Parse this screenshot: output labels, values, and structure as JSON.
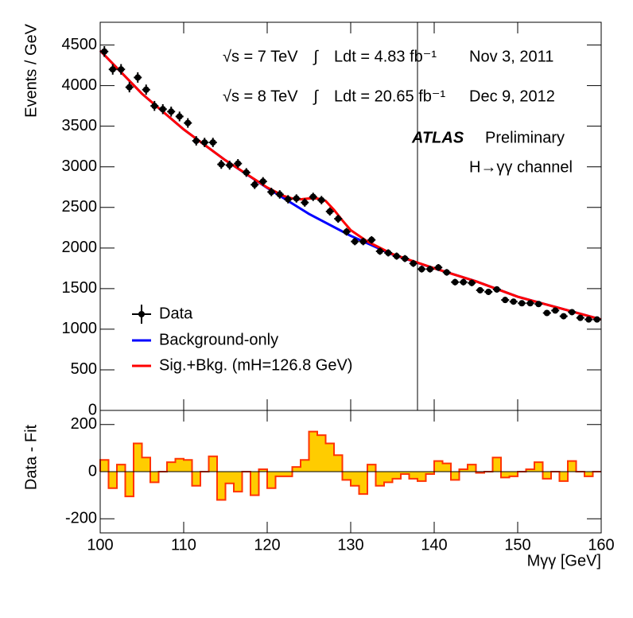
{
  "chart_data": [
    {
      "type": "errorbar",
      "ylabel": "Events / GeV",
      "xlim": [
        100,
        160
      ],
      "xticks": [
        100,
        110,
        120,
        130,
        140,
        150,
        160
      ],
      "ylim": [
        0,
        4780
      ],
      "yticks": [
        0,
        500,
        1000,
        1500,
        2000,
        2500,
        3000,
        3500,
        4000,
        4500
      ],
      "annotations": [
        "√s = 7 TeV",
        "Ldt = 4.83 fb⁻¹",
        "Nov  3, 2011",
        "√s = 8 TeV",
        "Ldt = 20.65 fb⁻¹",
        "Dec  9, 2012",
        "ATLAS",
        "Preliminary",
        "H→γγ channel"
      ],
      "vline": 138,
      "data": {
        "name": "Data",
        "color": "#000000",
        "x": [
          100.5,
          101.5,
          102.5,
          103.5,
          104.5,
          105.5,
          106.5,
          107.5,
          108.5,
          109.5,
          110.5,
          111.5,
          112.5,
          113.5,
          114.5,
          115.5,
          116.5,
          117.5,
          118.5,
          119.5,
          120.5,
          121.5,
          122.5,
          123.5,
          124.5,
          125.5,
          126.5,
          127.5,
          128.5,
          129.5,
          130.5,
          131.5,
          132.5,
          133.5,
          134.5,
          135.5,
          136.5,
          137.5,
          138.5,
          139.5,
          140.5,
          141.5,
          142.5,
          143.5,
          144.5,
          145.5,
          146.5,
          147.5,
          148.5,
          149.5,
          150.5,
          151.5,
          152.5,
          153.5,
          154.5,
          155.5,
          156.5,
          157.5,
          158.5,
          159.5
        ],
        "values": [
          4420,
          4200,
          4200,
          3980,
          4100,
          3950,
          3750,
          3710,
          3680,
          3620,
          3540,
          3320,
          3300,
          3300,
          3030,
          3020,
          3040,
          2930,
          2780,
          2820,
          2690,
          2660,
          2600,
          2610,
          2560,
          2630,
          2590,
          2450,
          2360,
          2200,
          2080,
          2080,
          2100,
          1960,
          1940,
          1900,
          1870,
          1810,
          1740,
          1740,
          1760,
          1700,
          1580,
          1580,
          1570,
          1480,
          1460,
          1490,
          1360,
          1340,
          1320,
          1320,
          1310,
          1200,
          1230,
          1160,
          1210,
          1140,
          1120,
          1120
        ],
        "errors": [
          66,
          65,
          65,
          63,
          64,
          63,
          61,
          61,
          61,
          60,
          59,
          58,
          57,
          57,
          55,
          55,
          55,
          54,
          53,
          53,
          52,
          52,
          51,
          51,
          51,
          51,
          51,
          50,
          49,
          47,
          46,
          46,
          46,
          44,
          44,
          44,
          43,
          43,
          42,
          42,
          42,
          41,
          40,
          40,
          40,
          38,
          38,
          39,
          37,
          37,
          36,
          36,
          36,
          35,
          35,
          34,
          35,
          34,
          33,
          33
        ]
      },
      "series": [
        {
          "name": "Background-only",
          "color": "#0000ff",
          "x": [
            100,
            105,
            110,
            115,
            120,
            125,
            130,
            135,
            140,
            145,
            150,
            155,
            160
          ],
          "values": [
            4430,
            3900,
            3460,
            3080,
            2740,
            2420,
            2150,
            1920,
            1750,
            1590,
            1400,
            1260,
            1120
          ]
        },
        {
          "name": "Sig.+Bkg. (mH=126.8 GeV)",
          "color": "#ff0000",
          "x": [
            100,
            105,
            110,
            115,
            120,
            122,
            123,
            124,
            125,
            126,
            127,
            128,
            129,
            130,
            132,
            135,
            140,
            145,
            150,
            155,
            160
          ],
          "values": [
            4430,
            3900,
            3460,
            3080,
            2745,
            2640,
            2610,
            2600,
            2610,
            2610,
            2580,
            2470,
            2340,
            2220,
            2080,
            1925,
            1750,
            1590,
            1400,
            1260,
            1120
          ]
        }
      ]
    },
    {
      "type": "histogram",
      "ylabel": "Data - Fit",
      "xlabel": "Mγγ [GeV]",
      "color": "#ffcc00",
      "edge_color": "#ff3300",
      "xlim": [
        100,
        160
      ],
      "xticks": [
        100,
        110,
        120,
        130,
        140,
        150,
        160
      ],
      "ylim": [
        -260,
        260
      ],
      "yticks": [
        -200,
        0,
        200
      ],
      "bins": [
        100,
        101,
        102,
        103,
        104,
        105,
        106,
        107,
        108,
        109,
        110,
        111,
        112,
        113,
        114,
        115,
        116,
        117,
        118,
        119,
        120,
        121,
        122,
        123,
        124,
        125,
        126,
        127,
        128,
        129,
        130,
        131,
        132,
        133,
        134,
        135,
        136,
        137,
        138,
        139,
        140,
        141,
        142,
        143,
        144,
        145,
        146,
        147,
        148,
        149,
        150,
        151,
        152,
        153,
        154,
        155,
        156,
        157,
        158,
        159,
        160
      ],
      "values": [
        50,
        -70,
        30,
        -105,
        120,
        60,
        -45,
        0,
        40,
        55,
        50,
        -60,
        0,
        65,
        -120,
        -50,
        -85,
        0,
        -100,
        10,
        -70,
        -20,
        -20,
        20,
        50,
        170,
        155,
        120,
        70,
        -35,
        -60,
        -95,
        30,
        -60,
        -45,
        -30,
        -10,
        -30,
        -40,
        -10,
        45,
        35,
        -35,
        10,
        30,
        -5,
        0,
        60,
        -25,
        -20,
        0,
        10,
        40,
        -30,
        0,
        -40,
        45,
        0,
        -20,
        0
      ]
    }
  ]
}
